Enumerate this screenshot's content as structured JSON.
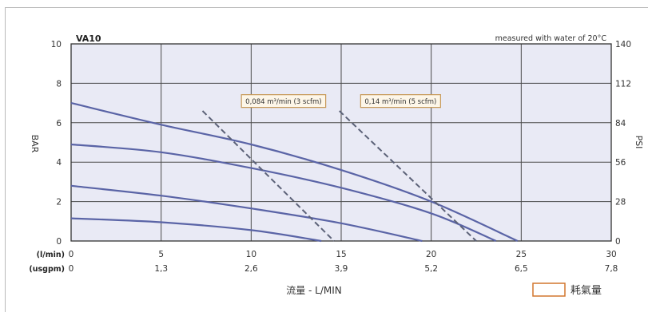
{
  "chart_data": {
    "type": "line",
    "title": "VA10",
    "annotation": "measured with water of 20°C",
    "xlabel": "流量 - L/MIN",
    "ylabel_left": "BAR",
    "ylabel_right": "PSI",
    "xlim": [
      0,
      30
    ],
    "ylim": [
      0,
      10
    ],
    "x_ticks_lmin": [
      "0",
      "5",
      "10",
      "15",
      "20",
      "25",
      "30"
    ],
    "x_ticks_usgpm": [
      "0",
      "1,3",
      "2,6",
      "3,9",
      "5,2",
      "6,5",
      "7,8"
    ],
    "x_row_label_lmin": "(l/min)",
    "x_row_label_usgpm": "(usgpm)",
    "y_ticks_left": [
      "0",
      "2",
      "4",
      "6",
      "8",
      "10"
    ],
    "y_ticks_right": [
      "0",
      "28",
      "56",
      "84",
      "112",
      "140"
    ],
    "grid": true,
    "pressure_curves": [
      {
        "x": [
          0,
          5,
          10,
          15,
          20,
          24.8
        ],
        "y": [
          7.0,
          5.9,
          4.9,
          3.6,
          2.0,
          0
        ]
      },
      {
        "x": [
          0,
          5,
          10,
          15,
          20,
          23.6
        ],
        "y": [
          4.9,
          4.5,
          3.7,
          2.7,
          1.4,
          0
        ]
      },
      {
        "x": [
          0,
          5,
          10,
          15,
          19.5
        ],
        "y": [
          2.8,
          2.3,
          1.65,
          0.9,
          0
        ]
      },
      {
        "x": [
          0,
          5,
          10,
          13.9
        ],
        "y": [
          1.15,
          0.95,
          0.55,
          0
        ]
      }
    ],
    "air_consumption_lines": [
      {
        "label": "0,084 m³/min (3 scfm)",
        "x": [
          7.3,
          14.6
        ],
        "y": [
          6.6,
          0
        ],
        "label_pos": [
          11.8,
          7.1
        ]
      },
      {
        "label": "0,14 m³/min (5 scfm)",
        "x": [
          14.9,
          22.5
        ],
        "y": [
          6.6,
          0
        ],
        "label_pos": [
          18.3,
          7.1
        ]
      }
    ],
    "legend_label": "耗氣量",
    "colors": {
      "curve": "#5a64a6",
      "dashed": "#5c6278",
      "grid": "#4a4a4a",
      "plot_bg": "#e9eaf5",
      "legend_box": "#d2772f",
      "label_box": "#c79a5a"
    }
  }
}
